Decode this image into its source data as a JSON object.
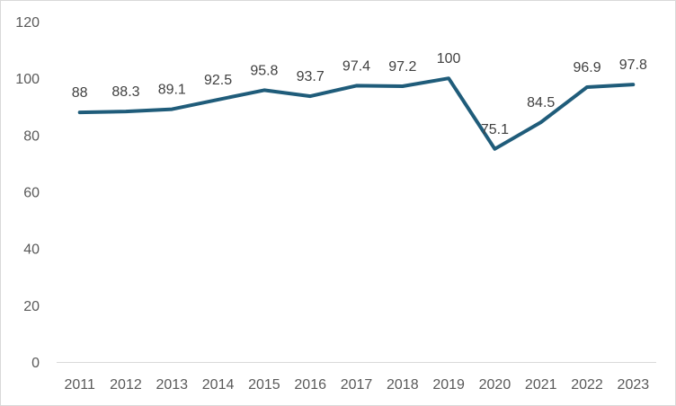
{
  "chart_data": {
    "type": "line",
    "categories": [
      "2011",
      "2012",
      "2013",
      "2014",
      "2015",
      "2016",
      "2017",
      "2018",
      "2019",
      "2020",
      "2021",
      "2022",
      "2023"
    ],
    "series": [
      {
        "values": [
          88,
          88.3,
          89.1,
          92.5,
          95.8,
          93.7,
          97.4,
          97.2,
          100,
          75.1,
          84.5,
          96.9,
          97.8
        ],
        "labels": [
          "88",
          "88.3",
          "89.1",
          "92.5",
          "95.8",
          "93.7",
          "97.4",
          "97.2",
          "100",
          "75.1",
          "84.5",
          "96.9",
          "97.8"
        ],
        "color": "#1f5c7a"
      }
    ],
    "yticks": [
      "0",
      "20",
      "40",
      "60",
      "80",
      "100",
      "120"
    ],
    "ylim": [
      0,
      120
    ],
    "grid": false,
    "legend": "none"
  }
}
